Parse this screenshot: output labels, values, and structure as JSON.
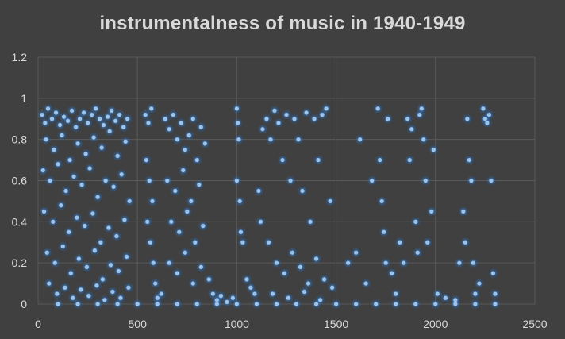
{
  "chart_data": {
    "type": "scatter",
    "title": "instrumentalness of music in 1940-1949",
    "xlabel": "",
    "ylabel": "",
    "xlim": [
      0,
      2500
    ],
    "ylim": [
      0,
      1.2
    ],
    "x_ticks": [
      "0",
      "500",
      "1000",
      "1500",
      "2000",
      "2500"
    ],
    "y_ticks": [
      "0",
      "0.2",
      "0.4",
      "0.6",
      "0.8",
      "1",
      "1.2"
    ],
    "grid": true,
    "legend": "none",
    "colors": {
      "background": "#404040",
      "grid": "#595959",
      "marker": "#9dc3e6",
      "glow": "#2e86f0",
      "text": "#d9d9d9"
    },
    "series": [
      {
        "points": [
          [
            20,
            0.92
          ],
          [
            35,
            0.88
          ],
          [
            50,
            0.95
          ],
          [
            70,
            0.9
          ],
          [
            90,
            0.93
          ],
          [
            110,
            0.87
          ],
          [
            130,
            0.91
          ],
          [
            150,
            0.89
          ],
          [
            170,
            0.94
          ],
          [
            190,
            0.86
          ],
          [
            210,
            0.9
          ],
          [
            230,
            0.93
          ],
          [
            250,
            0.88
          ],
          [
            270,
            0.92
          ],
          [
            290,
            0.95
          ],
          [
            310,
            0.9
          ],
          [
            330,
            0.87
          ],
          [
            350,
            0.91
          ],
          [
            370,
            0.94
          ],
          [
            390,
            0.89
          ],
          [
            410,
            0.92
          ],
          [
            430,
            0.86
          ],
          [
            450,
            0.9
          ],
          [
            40,
            0.8
          ],
          [
            80,
            0.75
          ],
          [
            120,
            0.82
          ],
          [
            160,
            0.7
          ],
          [
            200,
            0.78
          ],
          [
            240,
            0.73
          ],
          [
            280,
            0.81
          ],
          [
            320,
            0.76
          ],
          [
            360,
            0.84
          ],
          [
            400,
            0.72
          ],
          [
            440,
            0.79
          ],
          [
            25,
            0.65
          ],
          [
            60,
            0.6
          ],
          [
            100,
            0.68
          ],
          [
            140,
            0.55
          ],
          [
            180,
            0.62
          ],
          [
            220,
            0.58
          ],
          [
            260,
            0.66
          ],
          [
            300,
            0.52
          ],
          [
            340,
            0.6
          ],
          [
            380,
            0.57
          ],
          [
            420,
            0.63
          ],
          [
            460,
            0.5
          ],
          [
            30,
            0.45
          ],
          [
            75,
            0.4
          ],
          [
            115,
            0.48
          ],
          [
            155,
            0.35
          ],
          [
            195,
            0.42
          ],
          [
            235,
            0.38
          ],
          [
            275,
            0.44
          ],
          [
            315,
            0.3
          ],
          [
            355,
            0.37
          ],
          [
            395,
            0.33
          ],
          [
            435,
            0.41
          ],
          [
            45,
            0.25
          ],
          [
            85,
            0.2
          ],
          [
            125,
            0.28
          ],
          [
            165,
            0.15
          ],
          [
            205,
            0.22
          ],
          [
            245,
            0.18
          ],
          [
            285,
            0.26
          ],
          [
            325,
            0.12
          ],
          [
            365,
            0.19
          ],
          [
            405,
            0.16
          ],
          [
            445,
            0.23
          ],
          [
            55,
            0.1
          ],
          [
            95,
            0.05
          ],
          [
            135,
            0.08
          ],
          [
            175,
            0.03
          ],
          [
            215,
            0.07
          ],
          [
            255,
            0.04
          ],
          [
            295,
            0.09
          ],
          [
            335,
            0.02
          ],
          [
            375,
            0.06
          ],
          [
            415,
            0.03
          ],
          [
            455,
            0.08
          ],
          [
            540,
            0.92
          ],
          [
            555,
            0.88
          ],
          [
            570,
            0.95
          ],
          [
            545,
            0.7
          ],
          [
            560,
            0.6
          ],
          [
            575,
            0.5
          ],
          [
            550,
            0.4
          ],
          [
            565,
            0.3
          ],
          [
            580,
            0.2
          ],
          [
            590,
            0.1
          ],
          [
            600,
            0.03
          ],
          [
            620,
            0.05
          ],
          [
            640,
            0.9
          ],
          [
            660,
            0.85
          ],
          [
            680,
            0.92
          ],
          [
            700,
            0.8
          ],
          [
            720,
            0.88
          ],
          [
            740,
            0.75
          ],
          [
            760,
            0.82
          ],
          [
            780,
            0.9
          ],
          [
            800,
            0.7
          ],
          [
            820,
            0.86
          ],
          [
            840,
            0.78
          ],
          [
            650,
            0.6
          ],
          [
            690,
            0.55
          ],
          [
            730,
            0.65
          ],
          [
            770,
            0.5
          ],
          [
            810,
            0.58
          ],
          [
            670,
            0.4
          ],
          [
            710,
            0.35
          ],
          [
            750,
            0.45
          ],
          [
            790,
            0.3
          ],
          [
            830,
            0.38
          ],
          [
            660,
            0.2
          ],
          [
            700,
            0.15
          ],
          [
            740,
            0.25
          ],
          [
            780,
            0.1
          ],
          [
            820,
            0.18
          ],
          [
            860,
            0.12
          ],
          [
            880,
            0.05
          ],
          [
            900,
            0.02
          ],
          [
            920,
            0.04
          ],
          [
            950,
            0.01
          ],
          [
            980,
            0.03
          ],
          [
            1000,
            0.95
          ],
          [
            1005,
            0.88
          ],
          [
            1010,
            0.8
          ],
          [
            1000,
            0.6
          ],
          [
            1015,
            0.5
          ],
          [
            1020,
            0.35
          ],
          [
            1030,
            0.3
          ],
          [
            1050,
            0.12
          ],
          [
            1070,
            0.08
          ],
          [
            1090,
            0.05
          ],
          [
            1110,
            0.55
          ],
          [
            1120,
            0.4
          ],
          [
            1130,
            0.85
          ],
          [
            1150,
            0.9
          ],
          [
            1170,
            0.8
          ],
          [
            1190,
            0.94
          ],
          [
            1210,
            0.88
          ],
          [
            1230,
            0.7
          ],
          [
            1250,
            0.92
          ],
          [
            1270,
            0.6
          ],
          [
            1290,
            0.9
          ],
          [
            1310,
            0.8
          ],
          [
            1330,
            0.55
          ],
          [
            1350,
            0.93
          ],
          [
            1370,
            0.4
          ],
          [
            1390,
            0.9
          ],
          [
            1410,
            0.7
          ],
          [
            1430,
            0.92
          ],
          [
            1450,
            0.95
          ],
          [
            1470,
            0.5
          ],
          [
            1160,
            0.3
          ],
          [
            1200,
            0.2
          ],
          [
            1240,
            0.15
          ],
          [
            1280,
            0.25
          ],
          [
            1320,
            0.18
          ],
          [
            1360,
            0.1
          ],
          [
            1400,
            0.22
          ],
          [
            1440,
            0.12
          ],
          [
            1480,
            0.08
          ],
          [
            1180,
            0.05
          ],
          [
            1260,
            0.03
          ],
          [
            1340,
            0.06
          ],
          [
            1420,
            0.02
          ],
          [
            1560,
            0.2
          ],
          [
            1600,
            0.25
          ],
          [
            1620,
            0.8
          ],
          [
            1650,
            0.1
          ],
          [
            1680,
            0.6
          ],
          [
            1710,
            0.95
          ],
          [
            1720,
            0.7
          ],
          [
            1730,
            0.5
          ],
          [
            1740,
            0.35
          ],
          [
            1750,
            0.2
          ],
          [
            1760,
            0.9
          ],
          [
            1780,
            0.15
          ],
          [
            1800,
            0.05
          ],
          [
            1820,
            0.3
          ],
          [
            1840,
            0.2
          ],
          [
            1860,
            0.9
          ],
          [
            1870,
            0.7
          ],
          [
            1880,
            0.85
          ],
          [
            1900,
            0.4
          ],
          [
            1910,
            0.25
          ],
          [
            1920,
            0.92
          ],
          [
            1930,
            0.95
          ],
          [
            1940,
            0.8
          ],
          [
            1950,
            0.6
          ],
          [
            1960,
            0.3
          ],
          [
            1980,
            0.45
          ],
          [
            1990,
            0.75
          ],
          [
            2010,
            0.05
          ],
          [
            2050,
            0.03
          ],
          [
            2100,
            0.02
          ],
          [
            2120,
            0.2
          ],
          [
            2140,
            0.45
          ],
          [
            2150,
            0.3
          ],
          [
            2160,
            0.9
          ],
          [
            2170,
            0.7
          ],
          [
            2180,
            0.6
          ],
          [
            2190,
            0.2
          ],
          [
            2200,
            0.05
          ],
          [
            2220,
            0.1
          ],
          [
            2240,
            0.95
          ],
          [
            2250,
            0.9
          ],
          [
            2260,
            0.88
          ],
          [
            2270,
            0.92
          ],
          [
            2280,
            0.6
          ],
          [
            2290,
            0.15
          ],
          [
            2300,
            0.05
          ],
          [
            100,
            0
          ],
          [
            200,
            0
          ],
          [
            300,
            0
          ],
          [
            400,
            0
          ],
          [
            500,
            0
          ],
          [
            600,
            0
          ],
          [
            700,
            0
          ],
          [
            800,
            0
          ],
          [
            900,
            0
          ],
          [
            1000,
            0
          ],
          [
            1100,
            0
          ],
          [
            1200,
            0
          ],
          [
            1300,
            0
          ],
          [
            1400,
            0
          ],
          [
            1500,
            0
          ],
          [
            1600,
            0
          ],
          [
            1700,
            0
          ],
          [
            1800,
            0
          ],
          [
            1900,
            0
          ],
          [
            2000,
            0
          ],
          [
            2100,
            0
          ],
          [
            2200,
            0
          ],
          [
            2300,
            0
          ]
        ]
      }
    ]
  }
}
